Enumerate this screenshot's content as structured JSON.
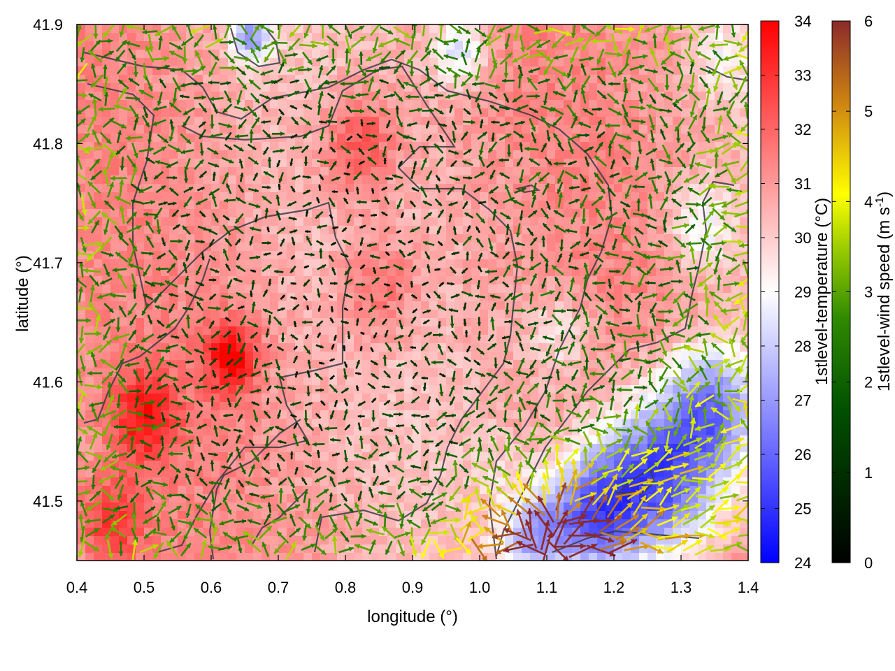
{
  "chart_data": {
    "type": "heatmap",
    "subtype": "temperature field with wind-vector overlay and contour lines",
    "title": "",
    "xlabel": "longitude (°)",
    "ylabel": "latitude (°)",
    "xlim": [
      0.4,
      1.4
    ],
    "ylim": [
      41.45,
      41.9
    ],
    "x_ticks": [
      "0.4",
      "0.5",
      "0.6",
      "0.7",
      "0.8",
      "0.9",
      "1.0",
      "1.1",
      "1.2",
      "1.3",
      "1.4"
    ],
    "y_ticks": [
      "41.5",
      "41.6",
      "41.7",
      "41.8",
      "41.9"
    ],
    "colorbar_temperature": {
      "label": "1stlevel-temperature (°C)",
      "range": [
        24,
        34
      ],
      "ticks": [
        "24",
        "25",
        "26",
        "27",
        "28",
        "29",
        "30",
        "31",
        "32",
        "33",
        "34"
      ],
      "colors": [
        "#0000ff",
        "#ffffff",
        "#ff0000"
      ]
    },
    "colorbar_wind": {
      "label_main": "1stlevel-wind speed (m s",
      "label_sup": "-1",
      "label_close": ")",
      "range": [
        0,
        6
      ],
      "ticks": [
        "0",
        "1",
        "2",
        "3",
        "4",
        "5",
        "6"
      ],
      "colors": [
        "#000000",
        "#006400",
        "#7fbf00",
        "#ffff00",
        "#cc8800",
        "#8b2a2a"
      ]
    },
    "temperature_field_notes": "mostly 30-32 °C over land; cooler (25-27 °C) blue region in the south-east around lon 1.2-1.4, lat 41.45-41.6; cool patches near lon 0.65 and 0.95-1.0 at lat 41.88; warm cores ~33 °C near lon 0.63 lat 41.62 and lon 0.5 lat 41.57",
    "temperature_anomalies": [
      {
        "lon": 0.63,
        "lat": 41.62,
        "dT": 3.0,
        "r": 0.04
      },
      {
        "lon": 0.5,
        "lat": 41.57,
        "dT": 2.5,
        "r": 0.05
      },
      {
        "lon": 0.45,
        "lat": 41.48,
        "dT": 2.0,
        "r": 0.05
      },
      {
        "lon": 0.82,
        "lat": 41.8,
        "dT": 2.0,
        "r": 0.06
      },
      {
        "lon": 0.85,
        "lat": 41.68,
        "dT": 1.5,
        "r": 0.06
      },
      {
        "lon": 1.27,
        "lat": 41.52,
        "dT": -5.5,
        "r": 0.09
      },
      {
        "lon": 1.17,
        "lat": 41.49,
        "dT": -4.5,
        "r": 0.07
      },
      {
        "lon": 1.35,
        "lat": 41.58,
        "dT": -4.0,
        "r": 0.07
      },
      {
        "lon": 1.08,
        "lat": 41.47,
        "dT": -3.0,
        "r": 0.05
      },
      {
        "lon": 0.66,
        "lat": 41.89,
        "dT": -3.5,
        "r": 0.03
      },
      {
        "lon": 0.97,
        "lat": 41.88,
        "dT": -2.5,
        "r": 0.04
      },
      {
        "lon": 1.33,
        "lat": 41.73,
        "dT": -2.0,
        "r": 0.05
      },
      {
        "lon": 1.36,
        "lat": 41.87,
        "dT": -1.5,
        "r": 0.04
      },
      {
        "lon": 1.12,
        "lat": 41.64,
        "dT": -1.5,
        "r": 0.05
      },
      {
        "lon": 1.02,
        "lat": 41.53,
        "dT": -0.5,
        "r": 0.04
      }
    ],
    "wind_field_notes": "weak winds (0-2 m s-1, dark green/black arrows) over the interior; stronger 3-4 m s-1 (yellow-green) near edges; strongest 4-6 m s-1 (yellow to brown) in the south-east near lon 1.05-1.15, lat 41.45-41.5"
  }
}
